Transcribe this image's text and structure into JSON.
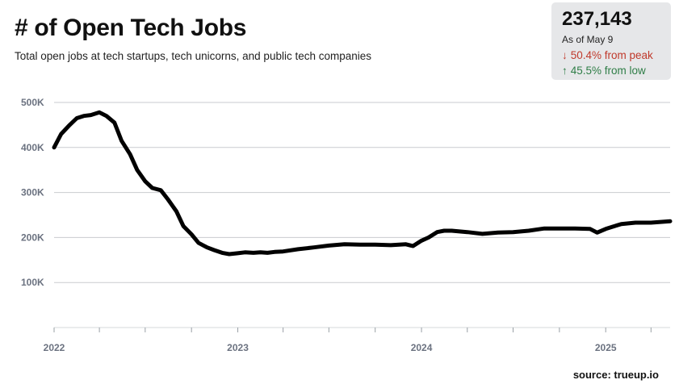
{
  "header": {
    "title": "# of Open Tech Jobs",
    "subtitle": "Total open jobs at tech startups, tech unicorns, and public tech companies"
  },
  "stats": {
    "value": "237,143",
    "as_of": "As of May 9",
    "from_peak": "50.4% from peak",
    "from_low": "45.5% from low",
    "peak_color": "#c0392b",
    "low_color": "#2e7d46",
    "down_icon": "arrow-down-icon",
    "up_icon": "arrow-up-icon"
  },
  "source": "source: trueup.io",
  "chart_data": {
    "type": "line",
    "title": "# of Open Tech Jobs",
    "subtitle": "Total open jobs at tech startups, tech unicorns, and public tech companies",
    "xlabel": "",
    "ylabel": "",
    "x_ticks": [
      "2022",
      "2023",
      "2024",
      "2025"
    ],
    "y_ticks": [
      "100K",
      "200K",
      "300K",
      "400K",
      "500K"
    ],
    "y_tick_values": [
      100000,
      200000,
      300000,
      400000,
      500000
    ],
    "ylim": [
      0,
      500000
    ],
    "xlim": [
      "2022-01-01",
      "2025-05-09"
    ],
    "grid": "horizontal",
    "line_color": "#000000",
    "series": [
      {
        "x": [
          "2022-01-01",
          "2022-01-15",
          "2022-02-01",
          "2022-02-15",
          "2022-03-01",
          "2022-03-15",
          "2022-04-01",
          "2022-04-15",
          "2022-05-01",
          "2022-05-15",
          "2022-06-01",
          "2022-06-15",
          "2022-07-01",
          "2022-07-15",
          "2022-08-01",
          "2022-08-15",
          "2022-09-01",
          "2022-09-15",
          "2022-10-01",
          "2022-10-15",
          "2022-11-01",
          "2022-11-15",
          "2022-12-01",
          "2022-12-15",
          "2023-01-01",
          "2023-01-15",
          "2023-02-01",
          "2023-02-15",
          "2023-03-01",
          "2023-03-15",
          "2023-04-01",
          "2023-05-01",
          "2023-06-01",
          "2023-07-01",
          "2023-08-01",
          "2023-09-01",
          "2023-10-01",
          "2023-11-01",
          "2023-12-01",
          "2023-12-15",
          "2024-01-01",
          "2024-01-15",
          "2024-02-01",
          "2024-02-15",
          "2024-03-01",
          "2024-04-01",
          "2024-05-01",
          "2024-06-01",
          "2024-07-01",
          "2024-08-01",
          "2024-09-01",
          "2024-10-01",
          "2024-11-01",
          "2024-12-01",
          "2024-12-15",
          "2025-01-01",
          "2025-01-15",
          "2025-02-01",
          "2025-03-01",
          "2025-04-01",
          "2025-05-09"
        ],
        "values": [
          400000,
          430000,
          450000,
          465000,
          470000,
          472000,
          478000,
          470000,
          455000,
          415000,
          385000,
          350000,
          325000,
          310000,
          305000,
          285000,
          258000,
          225000,
          207000,
          188000,
          178000,
          172000,
          166000,
          163000,
          165000,
          167000,
          166000,
          167000,
          166000,
          168000,
          169000,
          174000,
          178000,
          182000,
          185000,
          184000,
          184000,
          183000,
          185000,
          181000,
          193000,
          200000,
          212000,
          215000,
          215000,
          212000,
          208000,
          211000,
          212000,
          215000,
          220000,
          220000,
          220000,
          219000,
          211000,
          219000,
          224000,
          230000,
          233000,
          233000,
          236000
        ]
      }
    ]
  }
}
